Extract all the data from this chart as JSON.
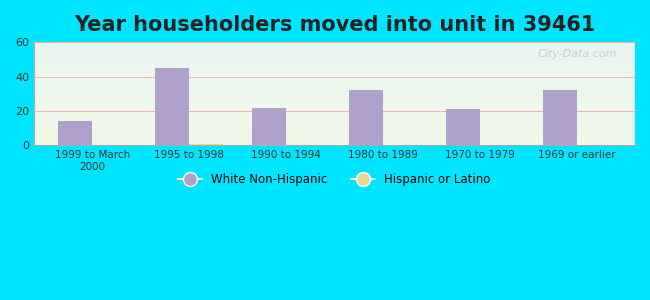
{
  "title": "Year householders moved into unit in 39461",
  "categories": [
    "1999 to March\n2000",
    "1995 to 1998",
    "1990 to 1994",
    "1980 to 1989",
    "1970 to 1979",
    "1969 or earlier"
  ],
  "white_non_hispanic": [
    14,
    45,
    22,
    32,
    21,
    32
  ],
  "hispanic_or_latino": [
    0,
    1,
    0,
    0,
    0,
    0
  ],
  "bar_color_white": "#b0a0cc",
  "bar_color_hispanic": "#e8d890",
  "ylim": [
    0,
    60
  ],
  "yticks": [
    0,
    20,
    40,
    60
  ],
  "background_outer": "#00e5ff",
  "background_inner_top": "#e8f5f0",
  "background_inner_bottom": "#f0f8e8",
  "watermark": "City-Data.com",
  "legend_white_label": "White Non-Hispanic",
  "legend_hispanic_label": "Hispanic or Latino",
  "title_fontsize": 15,
  "bar_width": 0.35
}
